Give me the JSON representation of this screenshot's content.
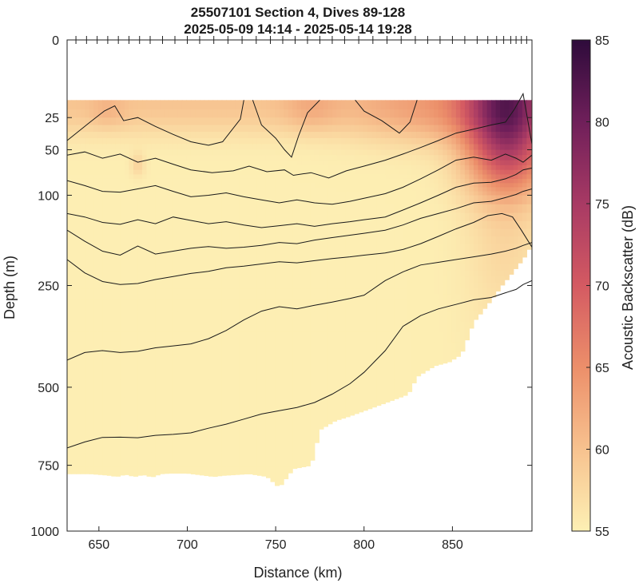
{
  "chart_data": {
    "type": "heatmap",
    "title": "25507101 Section 4, Dives 89-128",
    "subtitle": "2025-05-09 14:14 - 2025-05-14 19:28",
    "xlabel": "Distance (km)",
    "ylabel": "Depth (m)",
    "xlim": [
      632,
      895
    ],
    "ylim": [
      0,
      1000
    ],
    "y_scale": "sqrt",
    "y_reversed": true,
    "x_ticks": [
      650,
      700,
      750,
      800,
      850
    ],
    "y_ticks": [
      0,
      25,
      50,
      100,
      250,
      500,
      750,
      1000
    ],
    "colorbar": {
      "label": "Acoustic Backscatter (dB)",
      "range": [
        55,
        85
      ],
      "ticks": [
        55,
        60,
        65,
        70,
        75,
        80,
        85
      ],
      "colormap": [
        "#fdf0b4",
        "#f7c28f",
        "#ec8f6a",
        "#d45a62",
        "#a83a64",
        "#6f1f5a",
        "#2e0b3b"
      ]
    },
    "grid": false,
    "dive_marker_distances": [
      637,
      643,
      649,
      655,
      661,
      667,
      673,
      679,
      686,
      693,
      700,
      707,
      715,
      723,
      731,
      739,
      747,
      754,
      761,
      768,
      775,
      782,
      789,
      797,
      805,
      813,
      821,
      829,
      836,
      843,
      850,
      857,
      864,
      870,
      875,
      879,
      883,
      886,
      889,
      892
    ],
    "data_region": {
      "top_depth": 15,
      "bottom_profile": {
        "x": [
          632,
          645,
          655,
          660,
          665,
          670,
          675,
          680,
          685,
          690,
          700,
          715,
          720,
          735,
          745,
          752,
          760,
          770,
          775,
          784,
          790,
          800,
          815,
          825,
          830,
          840,
          848,
          855,
          862,
          870,
          878,
          885,
          892,
          895
        ],
        "depth": [
          780,
          780,
          785,
          790,
          782,
          790,
          783,
          792,
          780,
          778,
          778,
          790,
          786,
          780,
          790,
          830,
          762,
          750,
          630,
          600,
          590,
          570,
          540,
          520,
          470,
          440,
          430,
          410,
          330,
          290,
          250,
          220,
          190,
          170
        ]
      }
    },
    "contours": [
      {
        "x": [
          632,
          645,
          653,
          659,
          664,
          672,
          682,
          692,
          702,
          712,
          720,
          730,
          732
        ],
        "depth": [
          42,
          28,
          21,
          18,
          27,
          25,
          31,
          37,
          43,
          46,
          43,
          26,
          15
        ]
      },
      {
        "x": [
          737,
          742,
          750,
          755,
          759,
          763,
          768,
          775
        ],
        "depth": [
          15,
          30,
          40,
          50,
          57,
          38,
          22,
          15
        ]
      },
      {
        "x": [
          795,
          800,
          810,
          820,
          826,
          830
        ],
        "depth": [
          15,
          21,
          27,
          36,
          28,
          15
        ]
      },
      {
        "x": [
          632,
          642,
          652,
          662,
          672,
          682,
          692,
          702,
          714,
          726,
          735,
          745,
          755,
          760,
          770,
          780,
          790,
          800,
          812,
          822,
          832,
          842,
          852,
          862,
          872,
          880,
          885,
          890,
          895
        ],
        "depth": [
          55,
          52,
          58,
          54,
          62,
          58,
          64,
          70,
          73,
          71,
          66,
          72,
          70,
          76,
          73,
          79,
          71,
          66,
          60,
          54,
          48,
          42,
          36,
          33,
          30,
          28,
          20,
          12,
          45
        ]
      },
      {
        "x": [
          632,
          642,
          652,
          662,
          672,
          682,
          692,
          702,
          712,
          722,
          732,
          742,
          752,
          762,
          772,
          782,
          792,
          800,
          812,
          822,
          832,
          842,
          852,
          862,
          872,
          880,
          886,
          890,
          895
        ],
        "depth": [
          82,
          88,
          95,
          96,
          92,
          88,
          95,
          102,
          100,
          97,
          102,
          106,
          110,
          106,
          110,
          112,
          108,
          104,
          98,
          90,
          80,
          70,
          60,
          57,
          60,
          54,
          58,
          62,
          55
        ]
      },
      {
        "x": [
          632,
          642,
          652,
          662,
          672,
          682,
          692,
          702,
          712,
          722,
          732,
          742,
          752,
          762,
          772,
          782,
          792,
          800,
          812,
          822,
          832,
          842,
          852,
          862,
          872,
          880,
          886,
          890,
          895
        ],
        "depth": [
          125,
          130,
          138,
          141,
          134,
          140,
          130,
          135,
          140,
          137,
          142,
          146,
          143,
          140,
          144,
          140,
          137,
          134,
          130,
          120,
          110,
          100,
          90,
          85,
          84,
          80,
          75,
          70,
          68
        ]
      },
      {
        "x": [
          632,
          642,
          652,
          662,
          672,
          682,
          692,
          702,
          712,
          722,
          732,
          742,
          752,
          762,
          772,
          782,
          792,
          800,
          812,
          822,
          832,
          842,
          852,
          862,
          872,
          880,
          886,
          890,
          895
        ],
        "depth": [
          150,
          168,
          185,
          192,
          176,
          190,
          185,
          180,
          177,
          180,
          178,
          175,
          170,
          172,
          166,
          162,
          158,
          155,
          150,
          142,
          132,
          125,
          118,
          110,
          108,
          103,
          99,
          95,
          92
        ]
      },
      {
        "x": [
          632,
          642,
          652,
          662,
          672,
          682,
          692,
          702,
          712,
          722,
          732,
          742,
          752,
          762,
          772,
          782,
          792,
          800,
          812,
          822,
          832,
          842,
          852,
          862,
          870,
          878,
          884,
          889,
          895
        ],
        "depth": [
          200,
          225,
          242,
          248,
          246,
          238,
          232,
          226,
          222,
          215,
          212,
          208,
          204,
          206,
          202,
          198,
          195,
          192,
          188,
          182,
          172,
          160,
          148,
          138,
          128,
          125,
          130,
          150,
          178
        ]
      },
      {
        "x": [
          632,
          642,
          652,
          662,
          672,
          682,
          692,
          702,
          712,
          722,
          732,
          742,
          752,
          762,
          772,
          782,
          792,
          800,
          812,
          822,
          832,
          842,
          852,
          862,
          872,
          880,
          886,
          890,
          895
        ],
        "depth": [
          425,
          405,
          400,
          405,
          402,
          393,
          388,
          383,
          370,
          350,
          325,
          305,
          295,
          300,
          292,
          285,
          277,
          270,
          240,
          223,
          210,
          205,
          200,
          195,
          190,
          185,
          180,
          175,
          170
        ]
      },
      {
        "x": [
          632,
          642,
          652,
          662,
          672,
          682,
          692,
          702,
          712,
          722,
          732,
          742,
          752,
          762,
          772,
          782,
          792,
          800,
          812,
          822,
          832,
          842,
          852,
          862,
          872,
          880,
          886,
          890,
          895
        ],
        "depth": [
          690,
          670,
          655,
          654,
          656,
          648,
          645,
          640,
          625,
          612,
          596,
          580,
          570,
          560,
          545,
          520,
          490,
          458,
          400,
          340,
          315,
          300,
          290,
          280,
          275,
          265,
          258,
          248,
          240
        ]
      }
    ]
  }
}
